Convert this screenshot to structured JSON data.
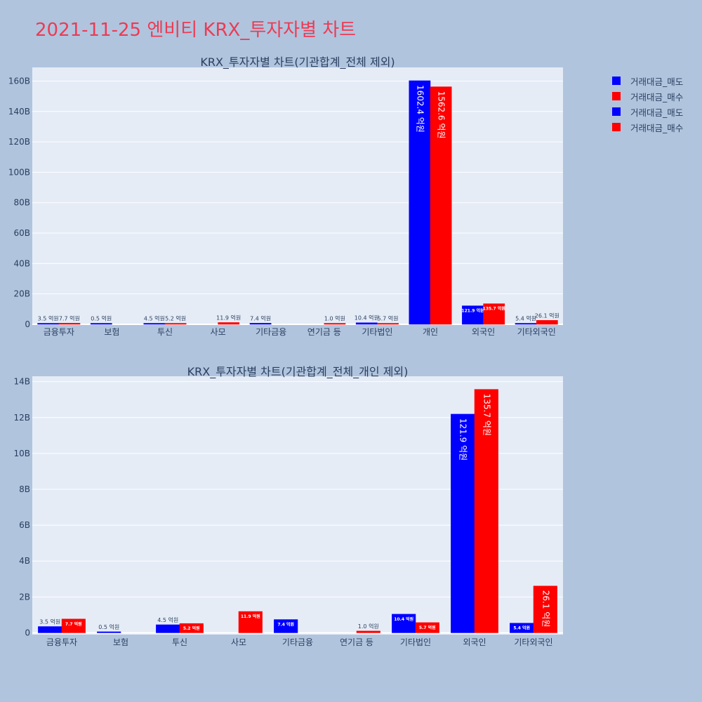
{
  "title": "2021-11-25 엔비티 KRX_투자자별 차트",
  "colors": {
    "sell": "#0000ff",
    "buy": "#ff0000",
    "plot_bg": "#e5ecf6",
    "paper_bg": "#b0c4de",
    "title": "#ec3b54",
    "axis_text": "#2a3f5f"
  },
  "legend": [
    {
      "label": "거래대금_매도",
      "color": "#0000ff"
    },
    {
      "label": "거래대금_매수",
      "color": "#ff0000"
    },
    {
      "label": "거래대금_매도",
      "color": "#0000ff"
    },
    {
      "label": "거래대금_매수",
      "color": "#ff0000"
    }
  ],
  "chart_data": [
    {
      "type": "bar",
      "title": "KRX_투자자별 차트(기관합계_전체 제외)",
      "categories": [
        "금융투자",
        "보험",
        "투신",
        "사모",
        "기타금융",
        "연기금 등",
        "기타법인",
        "개인",
        "외국인",
        "기타외국인"
      ],
      "series": [
        {
          "name": "거래대금_매도",
          "color": "#0000ff",
          "values": [
            0.35,
            0.05,
            0.45,
            0,
            0.74,
            0,
            1.04,
            160.24,
            12.19,
            0.54
          ],
          "labels": [
            "3.5 억원",
            "0.5 억원",
            "4.5 억원",
            "",
            "7.4 억원",
            "",
            "10.4 억원",
            "1602.4 억원",
            "121.9 억원",
            "5.4 억원"
          ]
        },
        {
          "name": "거래대금_매수",
          "color": "#ff0000",
          "values": [
            0.77,
            0,
            0.52,
            1.19,
            0,
            0.1,
            0.57,
            156.26,
            13.57,
            2.61
          ],
          "labels": [
            "7.7 억원",
            "",
            "5.2 억원",
            "11.9 억원",
            "",
            "1.0 억원",
            "5.7 억원",
            "1562.6 억원",
            "135.7 억원",
            "26.1 억원"
          ]
        }
      ],
      "yticks": [
        "0",
        "20B",
        "40B",
        "60B",
        "80B",
        "100B",
        "120B",
        "140B",
        "160B"
      ],
      "ytick_values": [
        0,
        20,
        40,
        60,
        80,
        100,
        120,
        140,
        160
      ],
      "ylim": [
        0,
        169
      ],
      "grid": true
    },
    {
      "type": "bar",
      "title": "KRX_투자자별 차트(기관합계_전체_개인 제외)",
      "categories": [
        "금융투자",
        "보험",
        "투신",
        "사모",
        "기타금융",
        "연기금 등",
        "기타법인",
        "외국인",
        "기타외국인"
      ],
      "series": [
        {
          "name": "거래대금_매도",
          "color": "#0000ff",
          "values": [
            0.35,
            0.05,
            0.45,
            0,
            0.74,
            0,
            1.04,
            12.19,
            0.54
          ],
          "labels": [
            "3.5 억원",
            "0.5 억원",
            "4.5 억원",
            "",
            "7.4 억원",
            "",
            "10.4 억원",
            "121.9 억원",
            "5.4 억원"
          ]
        },
        {
          "name": "거래대금_매수",
          "color": "#ff0000",
          "values": [
            0.77,
            0,
            0.52,
            1.19,
            0,
            0.1,
            0.57,
            13.57,
            2.61
          ],
          "labels": [
            "7.7 억원",
            "",
            "5.2 억원",
            "11.9 억원",
            "",
            "1.0 억원",
            "5.7 억원",
            "135.7 억원",
            "26.1 억원"
          ]
        }
      ],
      "yticks": [
        "0",
        "2B",
        "4B",
        "6B",
        "8B",
        "10B",
        "12B",
        "14B"
      ],
      "ytick_values": [
        0,
        2,
        4,
        6,
        8,
        10,
        12,
        14
      ],
      "ylim": [
        -0.1,
        14.3
      ],
      "grid": true
    }
  ]
}
